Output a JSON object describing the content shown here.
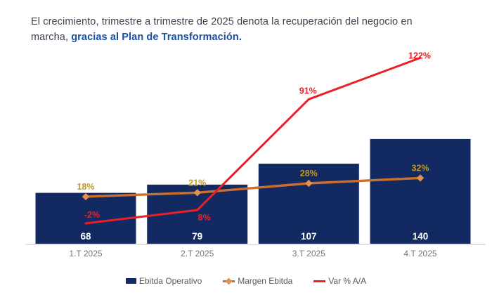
{
  "title": {
    "line1": "El crecimiento, trimestre a trimestre de 2025 denota la recuperación del negocio en",
    "line2_regular": "marcha, ",
    "line2_highlight": "gracias al Plan de Transformación."
  },
  "colors": {
    "bar_fill": "#132961",
    "margin_line": "#CC6F2C",
    "margin_marker": "#E2914F",
    "margin_label": "#C49A1F",
    "var_line": "#EC1F26",
    "var_label": "#EC1F26",
    "bar_value_label": "#FFFFFF",
    "axis_line": "#DADADA",
    "tick_label": "#737577",
    "legend_label": "#595959",
    "title_regular": "#3D4150",
    "title_highlight": "#1D4FA1"
  },
  "chart_data": {
    "type": "bar",
    "categories": [
      "1.T 2025",
      "2.T 2025",
      "3.T 2025",
      "4.T 2025"
    ],
    "series": [
      {
        "name": "Ebitda Operativo",
        "type": "bar",
        "axis": "primary",
        "values": [
          68,
          79,
          107,
          140
        ],
        "labels": [
          "68",
          "79",
          "107",
          "140"
        ]
      },
      {
        "name": "Margen Ebitda",
        "type": "line",
        "axis": "secondary",
        "values": [
          18,
          21,
          28,
          32
        ],
        "labels": [
          "18%",
          "21%",
          "28%",
          "32%"
        ]
      },
      {
        "name": "Var % A/A",
        "type": "line",
        "axis": "secondary",
        "values": [
          -2,
          8,
          91,
          122
        ],
        "labels": [
          "-2%",
          "8%",
          "91%",
          "122%"
        ]
      }
    ],
    "legend": [
      "Ebitda Operativo",
      "Margen Ebitda",
      "Var % A/A"
    ],
    "legend_position": "bottom",
    "grid": false,
    "x_axis_visible": true,
    "y_axis_visible": false
  }
}
